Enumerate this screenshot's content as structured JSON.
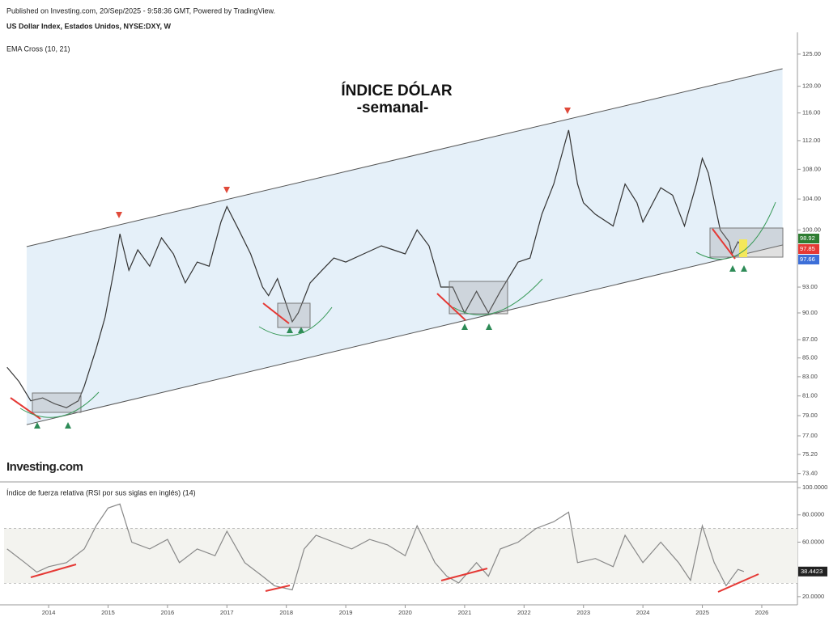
{
  "header": {
    "published": "Published on Investing.com, 20/Sep/2025 - 9:58:36 GMT, Powered by TradingView.",
    "symbol": "US Dollar Index, Estados Unidos, NYSE:DXY, W",
    "indicator": "EMA Cross (10, 21)",
    "logo": "Investing.com"
  },
  "chart_data": [
    {
      "type": "line",
      "annotations": [
        "ÍNDICE DÓLAR",
        "-semanal-"
      ],
      "log_scale": true,
      "xlim": [
        2013.25,
        2026.6
      ],
      "ylim": [
        72.7,
        128.5
      ],
      "yticks": [
        {
          "value": 125,
          "label": "125.00"
        },
        {
          "value": 120,
          "label": "120.00"
        },
        {
          "value": 116,
          "label": "116.00"
        },
        {
          "value": 112,
          "label": "112.00"
        },
        {
          "value": 108,
          "label": "108.00"
        },
        {
          "value": 104,
          "label": "104.00"
        },
        {
          "value": 100,
          "label": "100.00"
        },
        {
          "value": 93,
          "label": "93.00"
        },
        {
          "value": 90,
          "label": "90.00"
        },
        {
          "value": 87,
          "label": "87.00"
        },
        {
          "value": 85,
          "label": "85.00"
        },
        {
          "value": 83,
          "label": "83.00"
        },
        {
          "value": 81,
          "label": "81.00"
        },
        {
          "value": 79,
          "label": "79.00"
        },
        {
          "value": 77,
          "label": "77.00"
        },
        {
          "value": 75.2,
          "label": "75.20"
        },
        {
          "value": 73.4,
          "label": "73.40"
        }
      ],
      "series": [
        {
          "color": "#333333",
          "x": [
            2013.3,
            2013.5,
            2013.7,
            2013.9,
            2014.1,
            2014.3,
            2014.5,
            2014.6,
            2014.8,
            2014.95,
            2015.1,
            2015.2,
            2015.35,
            2015.5,
            2015.7,
            2015.9,
            2016.1,
            2016.3,
            2016.5,
            2016.7,
            2016.9,
            2017.0,
            2017.2,
            2017.4,
            2017.6,
            2017.7,
            2017.85,
            2018.1,
            2018.2,
            2018.4,
            2018.6,
            2018.8,
            2019.0,
            2019.3,
            2019.6,
            2019.8,
            2020.0,
            2020.2,
            2020.4,
            2020.6,
            2020.8,
            2021.0,
            2021.2,
            2021.4,
            2021.6,
            2021.9,
            2022.1,
            2022.3,
            2022.5,
            2022.7,
            2022.75,
            2022.9,
            2023.0,
            2023.2,
            2023.5,
            2023.7,
            2023.9,
            2024.0,
            2024.3,
            2024.5,
            2024.7,
            2024.9,
            2025.0,
            2025.1,
            2025.3,
            2025.45,
            2025.5,
            2025.6,
            2025.7
          ],
          "values": [
            84,
            82.5,
            80.5,
            80.8,
            80.2,
            79.8,
            80.5,
            82,
            86,
            89.5,
            95,
            99.5,
            95,
            97.5,
            95.5,
            99,
            97,
            93.5,
            96,
            95.5,
            101,
            103,
            100,
            97,
            93,
            92,
            94,
            89,
            90,
            93.5,
            95,
            96.5,
            96,
            97,
            98,
            97.5,
            97,
            100,
            98,
            93,
            93,
            90,
            92.5,
            90,
            92.5,
            96,
            96.5,
            102,
            106,
            112,
            113.5,
            106,
            103.5,
            102,
            100.5,
            106,
            103.5,
            101,
            105.5,
            104.5,
            100.5,
            106,
            109.5,
            107.5,
            100,
            98.5,
            97,
            98.5,
            97.7
          ]
        }
      ],
      "channel": [
        {
          "color": "#555555",
          "x": [
            2013.63,
            2026.35
          ],
          "values": [
            97.9,
            122.7
          ]
        },
        {
          "color": "#555555",
          "x": [
            2013.63,
            2026.35
          ],
          "values": [
            78.1,
            98.1
          ]
        }
      ],
      "price_tags": [
        {
          "value": 98.92,
          "color": "#2e7d32"
        },
        {
          "value": 97.85,
          "color": "#e53935"
        },
        {
          "value": 97.66,
          "color": "#3d6fd8"
        }
      ]
    },
    {
      "type": "line",
      "title": "Índice de fuerza relativa (RSI por sus siglas en inglés) (14)",
      "xlim": [
        2013.25,
        2026.6
      ],
      "ylim": [
        14,
        103
      ],
      "xticks": [
        2014,
        2015,
        2016,
        2017,
        2018,
        2019,
        2020,
        2021,
        2022,
        2023,
        2024,
        2025,
        2026
      ],
      "yticks": [
        {
          "value": 100,
          "label": "100.0000"
        },
        {
          "value": 80,
          "label": "80.0000"
        },
        {
          "value": 60,
          "label": "60.0000"
        },
        {
          "value": 20,
          "label": "20.0000"
        }
      ],
      "bands": [
        70,
        30
      ],
      "series": [
        {
          "color": "#888888",
          "x": [
            2013.3,
            2013.6,
            2013.8,
            2014.0,
            2014.3,
            2014.6,
            2014.8,
            2015.0,
            2015.2,
            2015.4,
            2015.7,
            2016.0,
            2016.2,
            2016.5,
            2016.8,
            2017.0,
            2017.3,
            2017.6,
            2017.8,
            2018.1,
            2018.3,
            2018.5,
            2018.8,
            2019.1,
            2019.4,
            2019.7,
            2020.0,
            2020.2,
            2020.5,
            2020.7,
            2020.9,
            2021.2,
            2021.4,
            2021.6,
            2021.9,
            2022.2,
            2022.5,
            2022.75,
            2022.9,
            2023.2,
            2023.5,
            2023.7,
            2024.0,
            2024.3,
            2024.6,
            2024.8,
            2025.0,
            2025.2,
            2025.4,
            2025.6,
            2025.7
          ],
          "values": [
            55,
            45,
            38,
            42,
            45,
            55,
            72,
            85,
            88,
            60,
            55,
            62,
            45,
            55,
            50,
            68,
            45,
            35,
            28,
            25,
            55,
            65,
            60,
            55,
            62,
            58,
            50,
            72,
            45,
            35,
            30,
            45,
            35,
            55,
            60,
            70,
            75,
            82,
            45,
            48,
            42,
            65,
            45,
            60,
            45,
            32,
            72,
            45,
            28,
            40,
            38.4423
          ]
        }
      ]
    }
  ]
}
